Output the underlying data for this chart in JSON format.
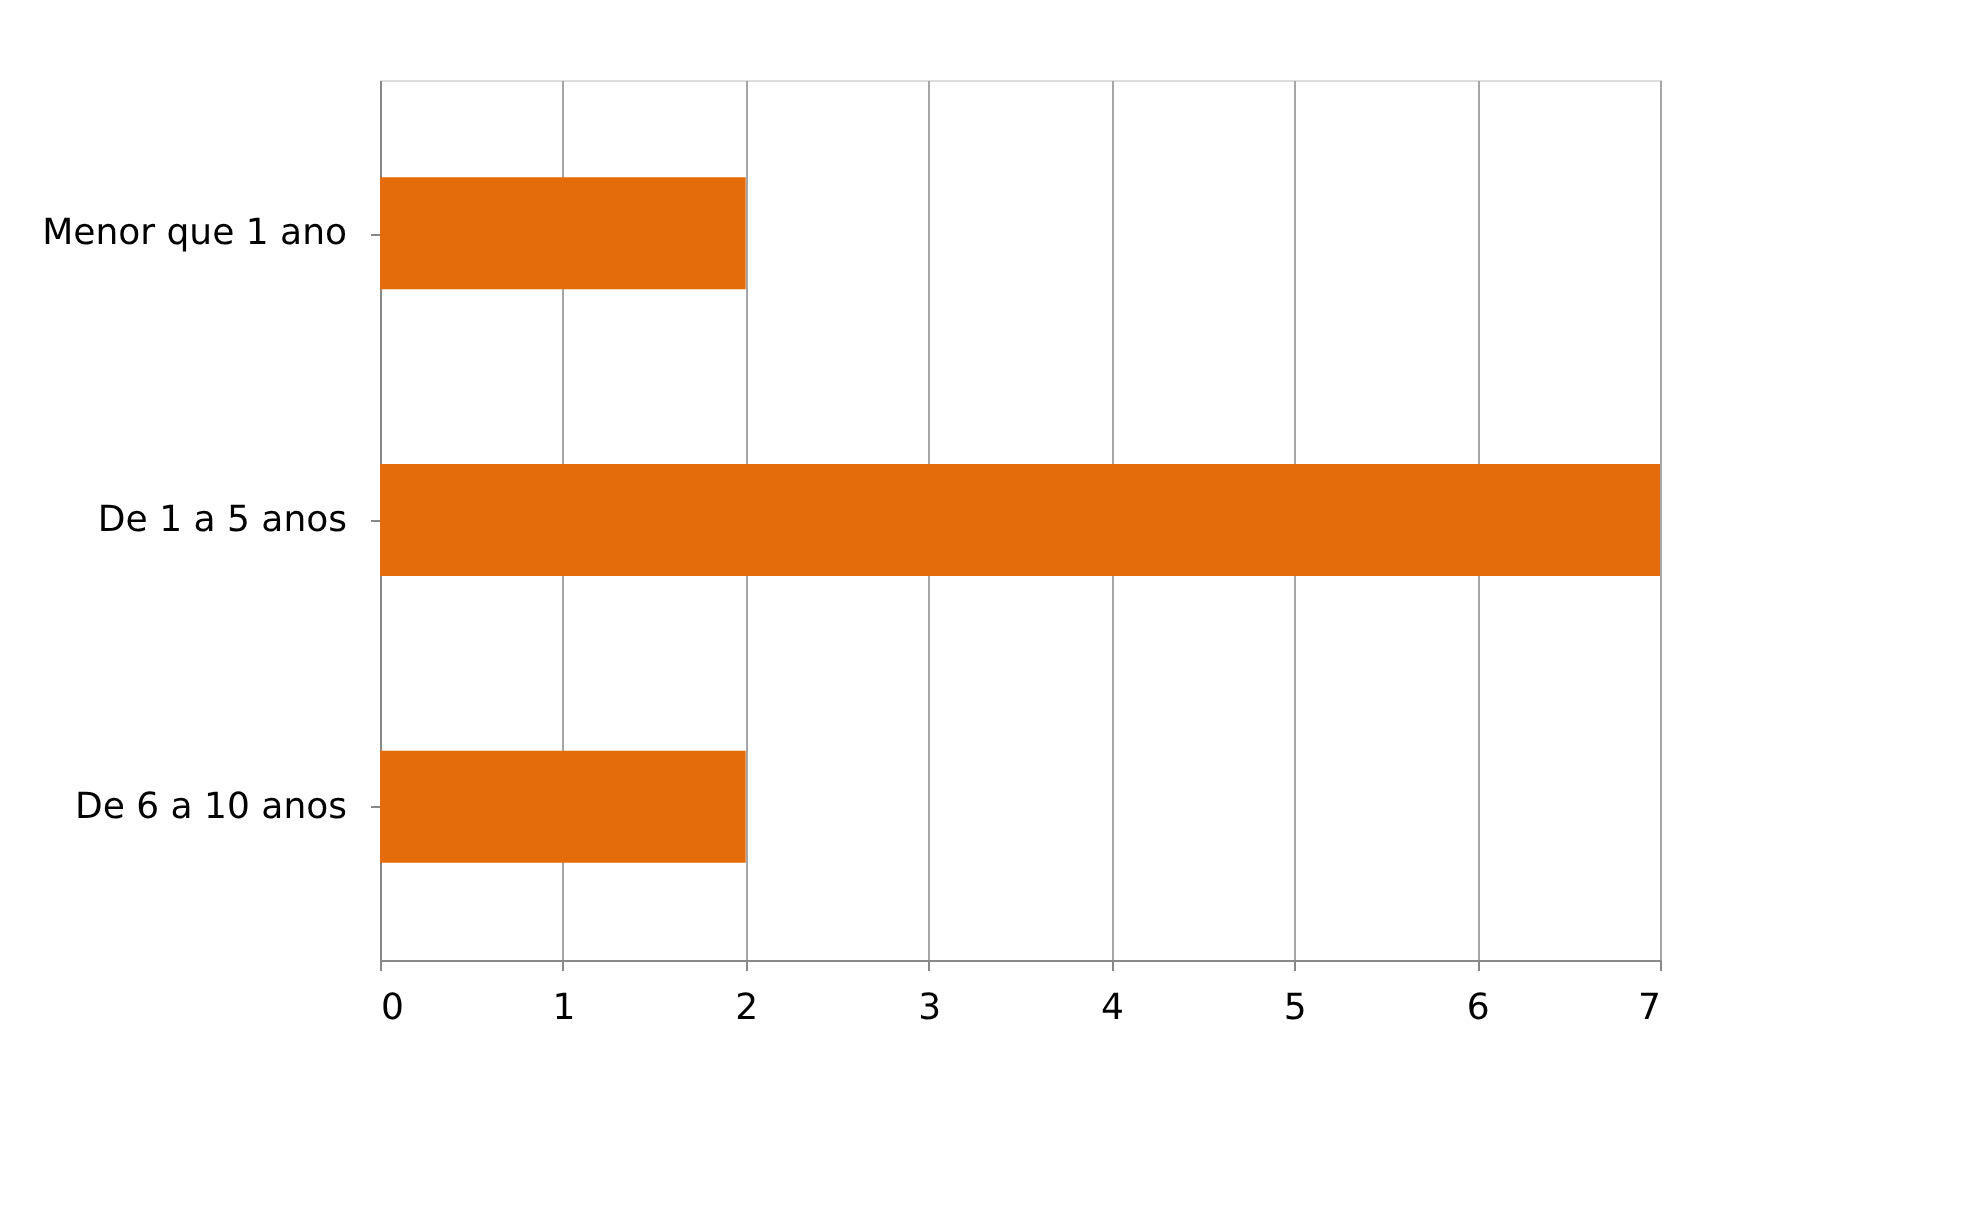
{
  "chart_data": {
    "type": "bar",
    "orientation": "horizontal",
    "categories": [
      "Menor que 1 ano",
      "De 1 a 5 anos",
      "De 6 a 10 anos"
    ],
    "values": [
      2,
      7,
      2
    ],
    "color": "#e46c0a",
    "xlim": [
      0,
      7
    ],
    "xticks": [
      0,
      1,
      2,
      3,
      4,
      5,
      6,
      7
    ],
    "grid": "x"
  }
}
